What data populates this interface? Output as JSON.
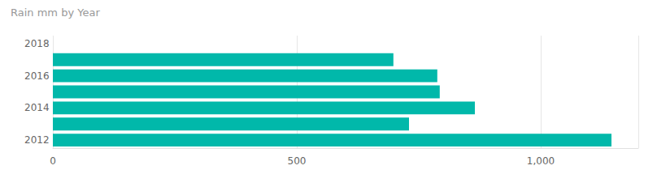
{
  "chart_data": {
    "type": "bar",
    "title": "Rain mm by Year",
    "orientation": "horizontal",
    "categories": [
      "2012",
      null,
      "2014",
      null,
      "2016",
      null,
      "2018"
    ],
    "values": [
      1145,
      730,
      865,
      793,
      788,
      698,
      null
    ],
    "color": "#01b8aa",
    "xlim": [
      0,
      1200
    ],
    "xticks": [
      0,
      500,
      {
        "value": 1000,
        "label": "1,000"
      }
    ],
    "grid": true
  }
}
